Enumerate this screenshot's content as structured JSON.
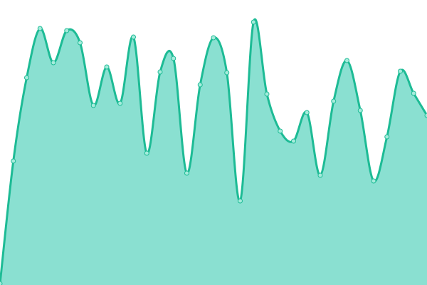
{
  "chart_data": {
    "type": "area",
    "title": "",
    "xlabel": "",
    "ylabel": "",
    "grid": false,
    "axes_visible": false,
    "ylim": [
      0,
      400
    ],
    "x": [
      0,
      1,
      2,
      3,
      4,
      5,
      6,
      7,
      8,
      9,
      10,
      11,
      12,
      13,
      14,
      15,
      16,
      17,
      18,
      19,
      20,
      21,
      22,
      23,
      24,
      25,
      26,
      27,
      28,
      29,
      30,
      31,
      32
    ],
    "values": [
      2,
      174,
      291,
      360,
      312,
      357,
      340,
      252,
      306,
      255,
      348,
      185,
      299,
      318,
      157,
      281,
      347,
      298,
      118,
      369,
      268,
      216,
      202,
      242,
      154,
      258,
      315,
      245,
      146,
      208,
      300,
      269,
      238
    ],
    "colors": {
      "line": "#1dbb95",
      "fill": "#8ae0d1",
      "marker_fill": "#a6ecdc"
    }
  }
}
